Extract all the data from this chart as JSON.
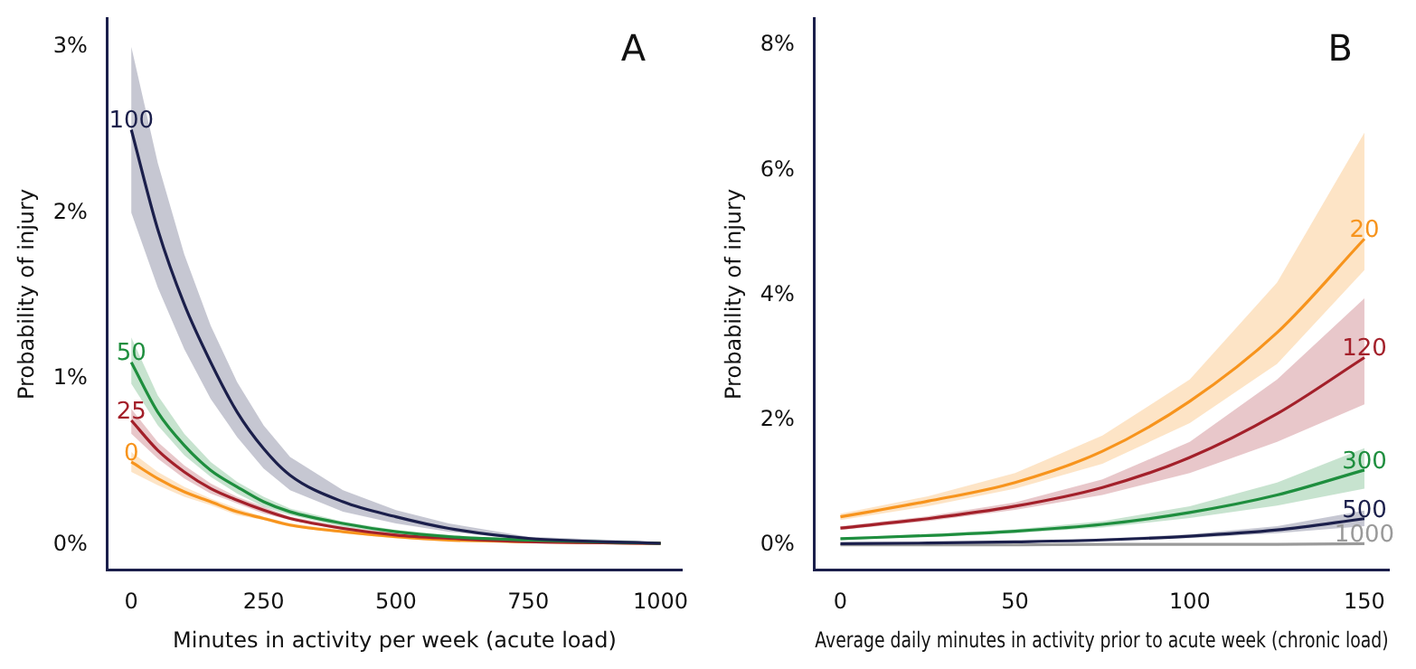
{
  "chart_data": [
    {
      "type": "line",
      "annotations": [
        "A"
      ],
      "xlabel": "Minutes in activity per week (acute load)",
      "ylabel": "Probability of injury",
      "legend": false,
      "x": [
        0,
        50,
        100,
        150,
        200,
        250,
        300,
        400,
        500,
        600,
        750,
        1000
      ],
      "xlim": [
        -45,
        1040
      ],
      "xticks": [
        0,
        250,
        500,
        750,
        1000
      ],
      "ylim": [
        -0.15,
        3.17
      ],
      "yticks": [
        {
          "value": 0,
          "label": "0%"
        },
        {
          "value": 1,
          "label": "1%"
        },
        {
          "value": 2,
          "label": "2%"
        },
        {
          "value": 3,
          "label": "3%"
        }
      ],
      "series": [
        {
          "name": "100",
          "color": "#1b1f4b",
          "values": [
            2.5,
            1.9,
            1.45,
            1.1,
            0.8,
            0.58,
            0.42,
            0.26,
            0.17,
            0.1,
            0.04,
            0.01
          ],
          "upper": [
            3.0,
            2.3,
            1.75,
            1.32,
            0.98,
            0.72,
            0.53,
            0.33,
            0.21,
            0.13,
            0.05,
            0.02
          ],
          "lower": [
            2.0,
            1.55,
            1.18,
            0.88,
            0.65,
            0.46,
            0.33,
            0.2,
            0.13,
            0.08,
            0.03,
            0.01
          ]
        },
        {
          "name": "50",
          "color": "#1e8e3e",
          "values": [
            1.1,
            0.8,
            0.6,
            0.45,
            0.35,
            0.26,
            0.2,
            0.13,
            0.08,
            0.05,
            0.03,
            0.01
          ],
          "upper": [
            1.25,
            0.9,
            0.67,
            0.5,
            0.38,
            0.29,
            0.22,
            0.14,
            0.09,
            0.06,
            0.03,
            0.01
          ],
          "lower": [
            0.97,
            0.72,
            0.54,
            0.41,
            0.31,
            0.23,
            0.18,
            0.11,
            0.07,
            0.04,
            0.02,
            0.01
          ]
        },
        {
          "name": "25",
          "color": "#a3202a",
          "values": [
            0.75,
            0.57,
            0.44,
            0.34,
            0.27,
            0.21,
            0.16,
            0.1,
            0.06,
            0.04,
            0.02,
            0.01
          ],
          "upper": [
            0.82,
            0.62,
            0.48,
            0.37,
            0.29,
            0.23,
            0.17,
            0.11,
            0.07,
            0.04,
            0.02,
            0.01
          ],
          "lower": [
            0.67,
            0.52,
            0.4,
            0.31,
            0.25,
            0.19,
            0.15,
            0.09,
            0.05,
            0.03,
            0.01,
            0
          ]
        },
        {
          "name": "0",
          "color": "#f7941d",
          "values": [
            0.5,
            0.4,
            0.32,
            0.26,
            0.2,
            0.16,
            0.12,
            0.08,
            0.05,
            0.03,
            0.02,
            0.01
          ],
          "upper": [
            0.56,
            0.44,
            0.35,
            0.28,
            0.22,
            0.17,
            0.13,
            0.09,
            0.06,
            0.04,
            0.02,
            0.01
          ],
          "lower": [
            0.44,
            0.36,
            0.29,
            0.24,
            0.18,
            0.15,
            0.11,
            0.07,
            0.04,
            0.02,
            0.01,
            0
          ]
        }
      ]
    },
    {
      "type": "line",
      "annotations": [
        "B"
      ],
      "xlabel": "Average daily minutes in activity prior to acute week (chronic load)",
      "ylabel": "Probability of injury",
      "legend": false,
      "x": [
        0,
        25,
        50,
        75,
        100,
        125,
        150
      ],
      "xlim": [
        -7.4,
        157
      ],
      "xticks": [
        0,
        50,
        100,
        150
      ],
      "ylim": [
        -0.4,
        8.43
      ],
      "yticks": [
        {
          "value": 0,
          "label": "0%"
        },
        {
          "value": 2,
          "label": "2%"
        },
        {
          "value": 4,
          "label": "4%"
        },
        {
          "value": 6,
          "label": "6%"
        },
        {
          "value": 8,
          "label": "8%"
        }
      ],
      "series": [
        {
          "name": "20",
          "color": "#f7941d",
          "values": [
            0.45,
            0.7,
            1.0,
            1.5,
            2.3,
            3.4,
            4.9
          ],
          "upper": [
            0.5,
            0.78,
            1.15,
            1.75,
            2.65,
            4.2,
            6.6
          ],
          "lower": [
            0.4,
            0.62,
            0.9,
            1.3,
            1.95,
            2.9,
            4.4
          ]
        },
        {
          "name": "120",
          "color": "#a3202a",
          "values": [
            0.27,
            0.42,
            0.62,
            0.92,
            1.4,
            2.1,
            3.0
          ],
          "upper": [
            0.3,
            0.46,
            0.68,
            1.05,
            1.65,
            2.65,
            3.95
          ],
          "lower": [
            0.24,
            0.38,
            0.56,
            0.8,
            1.15,
            1.65,
            2.25
          ]
        },
        {
          "name": "300",
          "color": "#1e8e3e",
          "values": [
            0.1,
            0.15,
            0.22,
            0.33,
            0.52,
            0.8,
            1.2
          ],
          "upper": [
            0.12,
            0.17,
            0.25,
            0.38,
            0.62,
            1.0,
            1.55
          ],
          "lower": [
            0.08,
            0.13,
            0.19,
            0.28,
            0.43,
            0.63,
            0.9
          ]
        },
        {
          "name": "500",
          "color": "#1b1f4b",
          "values": [
            0.02,
            0.03,
            0.05,
            0.08,
            0.14,
            0.24,
            0.42
          ],
          "upper": [
            0.02,
            0.03,
            0.06,
            0.1,
            0.17,
            0.3,
            0.55
          ],
          "lower": [
            0.01,
            0.02,
            0.04,
            0.07,
            0.11,
            0.19,
            0.3
          ]
        },
        {
          "name": "1000",
          "color": "#9a9a9a",
          "values": [
            0,
            0,
            0,
            0.01,
            0.01,
            0.01,
            0.02
          ]
        }
      ]
    }
  ]
}
